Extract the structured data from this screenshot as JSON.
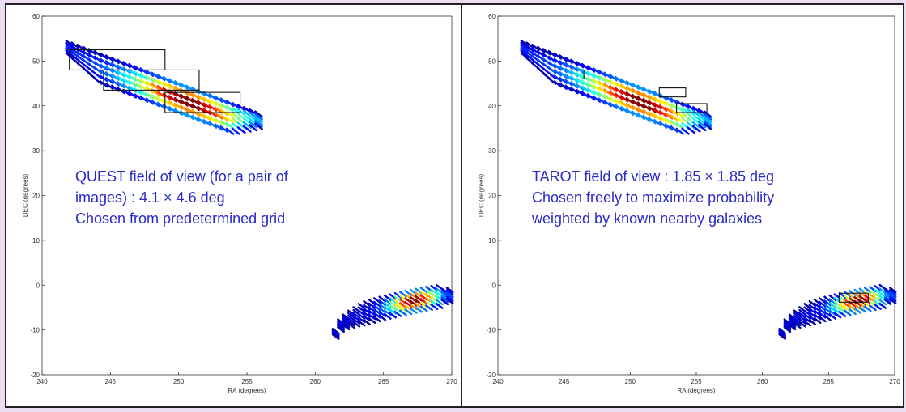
{
  "chart_data": [
    {
      "type": "scatter",
      "xlabel": "RA (degrees)",
      "ylabel": "DEC (degrees)",
      "xlim": [
        240,
        270
      ],
      "ylim": [
        -20,
        60
      ],
      "xticks": [
        240,
        245,
        250,
        255,
        260,
        265,
        270
      ],
      "yticks": [
        -20,
        -10,
        0,
        10,
        20,
        30,
        40,
        50,
        60
      ],
      "xtick_labels": [
        "240",
        "245",
        "250",
        "255",
        "260",
        "265",
        "270"
      ],
      "ytick_labels": [
        "-20",
        "-10",
        "0",
        "10",
        "20",
        "30",
        "40",
        "50",
        "60"
      ],
      "annotation_lines": [
        "QUEST field of view (for a pair of",
        "images) : 4.1 × 4.6 deg",
        "Chosen from predetermined grid"
      ],
      "annotation_color": "#2a2acb",
      "fields": [
        {
          "ra_min": 242.0,
          "ra_max": 249.0,
          "dec_min": 48.0,
          "dec_max": 52.5
        },
        {
          "ra_min": 244.5,
          "ra_max": 251.5,
          "dec_min": 43.5,
          "dec_max": 48.0
        },
        {
          "ra_min": 249.0,
          "ra_max": 254.5,
          "dec_min": 38.5,
          "dec_max": 43.0
        }
      ]
    },
    {
      "type": "scatter",
      "xlabel": "RA (degrees)",
      "ylabel": "DEC (degrees)",
      "xlim": [
        240,
        270
      ],
      "ylim": [
        -20,
        60
      ],
      "xticks": [
        240,
        245,
        250,
        255,
        260,
        265,
        270
      ],
      "yticks": [
        -20,
        -10,
        0,
        10,
        20,
        30,
        40,
        50,
        60
      ],
      "xtick_labels": [
        "240",
        "245",
        "250",
        "255",
        "260",
        "265",
        "270"
      ],
      "ytick_labels": [
        "-20",
        "-10",
        "0",
        "10",
        "20",
        "30",
        "40",
        "50",
        "60"
      ],
      "annotation_lines": [
        "TAROT field of view : 1.85 × 1.85 deg",
        "Chosen freely to maximize probability",
        "weighted by known nearby galaxies"
      ],
      "annotation_color": "#2a2acb",
      "fields": [
        {
          "ra_min": 244.0,
          "ra_max": 246.5,
          "dec_min": 46.0,
          "dec_max": 48.0
        },
        {
          "ra_min": 252.2,
          "ra_max": 254.2,
          "dec_min": 42.0,
          "dec_max": 44.0
        },
        {
          "ra_min": 253.5,
          "ra_max": 255.8,
          "dec_min": 38.5,
          "dec_max": 40.5
        },
        {
          "ra_min": 265.8,
          "ra_max": 268.0,
          "dec_min": -3.8,
          "dec_max": -1.8
        }
      ]
    }
  ],
  "probability_regions": [
    {
      "name": "north",
      "ra_min": 242.0,
      "ra_max": 256.0,
      "dec_max_at_min": 54.0,
      "dec_max_at_max": 38.0,
      "width_deg": 7.5
    },
    {
      "name": "south",
      "ra_min": 261.5,
      "ra_max": 270.0,
      "dec_center_at_min": -11.0,
      "dec_center_at_max": -2.5,
      "width_deg": 5.0
    }
  ]
}
